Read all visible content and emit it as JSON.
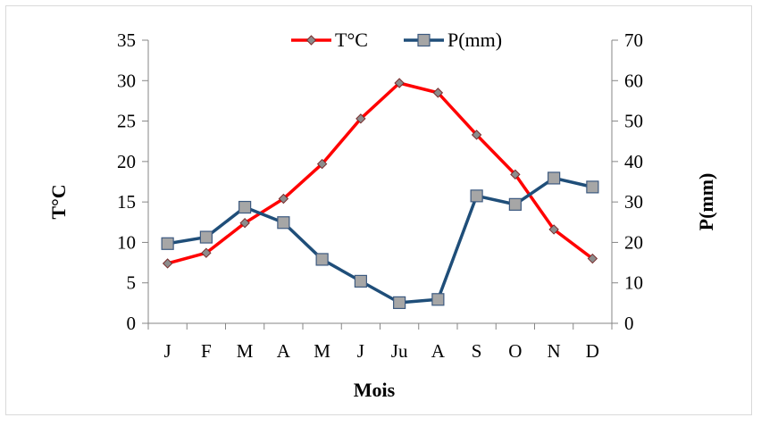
{
  "chart_data": {
    "type": "line",
    "title": "",
    "xlabel": "Mois",
    "ylabel": "T°C",
    "y2label": "P(mm)",
    "categories": [
      "J",
      "F",
      "M",
      "A",
      "M",
      "J",
      "Ju",
      "A",
      "S",
      "O",
      "N",
      "D"
    ],
    "ylim": [
      0,
      35
    ],
    "y2lim": [
      0,
      70
    ],
    "yticks": [
      "0",
      "5",
      "10",
      "15",
      "20",
      "25",
      "30",
      "35"
    ],
    "y2ticks": [
      "0",
      "10",
      "20",
      "30",
      "40",
      "50",
      "60",
      "70"
    ],
    "grid": false,
    "legend_position": "top",
    "series": [
      {
        "name": "T°C",
        "axis": "left",
        "color": "#ff0000",
        "marker": "diamond",
        "values": [
          7.4,
          8.7,
          12.4,
          15.4,
          19.7,
          25.3,
          29.7,
          28.5,
          23.3,
          18.4,
          11.6,
          8.0
        ]
      },
      {
        "name": "P(mm)",
        "axis": "right",
        "color": "#1f4e79",
        "marker": "square",
        "values": [
          19.7,
          21.3,
          28.7,
          24.9,
          15.8,
          10.4,
          5.1,
          5.9,
          31.5,
          29.4,
          35.9,
          33.7
        ]
      }
    ]
  }
}
